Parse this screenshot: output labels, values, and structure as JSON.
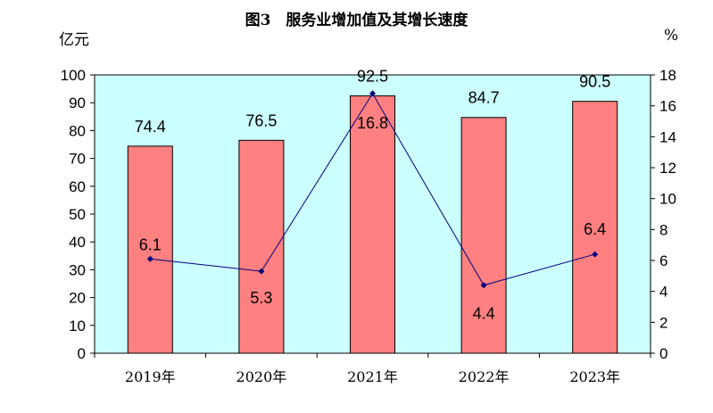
{
  "chart_data": {
    "type": "bar",
    "title": "图3　服务业增加值及其增长速度",
    "categories": [
      "2019年",
      "2020年",
      "2021年",
      "2022年",
      "2023年"
    ],
    "series": [
      {
        "type": "bar",
        "axis": "left",
        "values": [
          74.4,
          76.5,
          92.5,
          84.7,
          90.5
        ],
        "color": "#ff8080"
      },
      {
        "type": "line",
        "axis": "right",
        "values": [
          6.1,
          5.3,
          16.8,
          4.4,
          6.4
        ],
        "color": "#000080"
      }
    ],
    "ylabel_left": "亿元",
    "ylabel_right": "%",
    "ylim_left": [
      0,
      100
    ],
    "ylim_right": [
      0,
      18
    ],
    "yticks_left": [
      "0",
      "10",
      "20",
      "30",
      "40",
      "50",
      "60",
      "70",
      "80",
      "90",
      "100"
    ],
    "yticks_right": [
      "0",
      "2",
      "4",
      "6",
      "8",
      "10",
      "12",
      "14",
      "16",
      "18"
    ],
    "bar_labels": [
      "74.4",
      "76.5",
      "92.5",
      "84.7",
      "90.5"
    ],
    "line_labels": [
      "6.1",
      "5.3",
      "16.8",
      "4.4",
      "6.4"
    ],
    "plot_background": "#ccffff",
    "grid": false,
    "legend": "none"
  }
}
